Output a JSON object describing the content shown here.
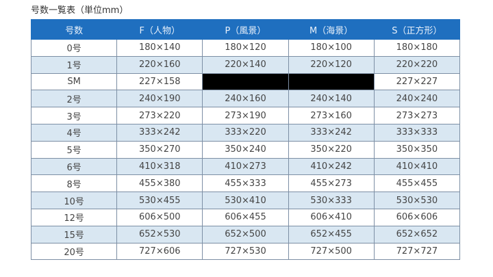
{
  "title": "号数一覧表（単位mm）",
  "headers": [
    "号数",
    "F（人物）",
    "P（風景）",
    "M（海景）",
    "S（正方形）"
  ],
  "rows": [
    [
      "0号",
      "180×140",
      "180×120",
      "180×100",
      "180×180"
    ],
    [
      "1号",
      "220×160",
      "220×140",
      "220×120",
      "220×220"
    ],
    [
      "SM",
      "227×158",
      "",
      "",
      "227×227"
    ],
    [
      "2号",
      "240×190",
      "240×160",
      "240×140",
      "240×240"
    ],
    [
      "3号",
      "273×220",
      "273×190",
      "273×160",
      "273×273"
    ],
    [
      "4号",
      "333×242",
      "333×220",
      "333×242",
      "333×333"
    ],
    [
      "5号",
      "350×270",
      "350×240",
      "350×220",
      "350×350"
    ],
    [
      "6号",
      "410×318",
      "410×273",
      "410×242",
      "410×410"
    ],
    [
      "8号",
      "455×380",
      "455×333",
      "455×273",
      "455×455"
    ],
    [
      "10号",
      "530×455",
      "530×410",
      "530×333",
      "530×530"
    ],
    [
      "12号",
      "606×500",
      "606×455",
      "606×410",
      "606×606"
    ],
    [
      "15号",
      "652×530",
      "652×500",
      "652×455",
      "652×652"
    ],
    [
      "20号",
      "727×606",
      "727×530",
      "727×500",
      "727×727"
    ]
  ],
  "colors": {
    "header": "#1f6fbf",
    "alt_row": "#d9e7f2",
    "redacted": "#000000"
  }
}
